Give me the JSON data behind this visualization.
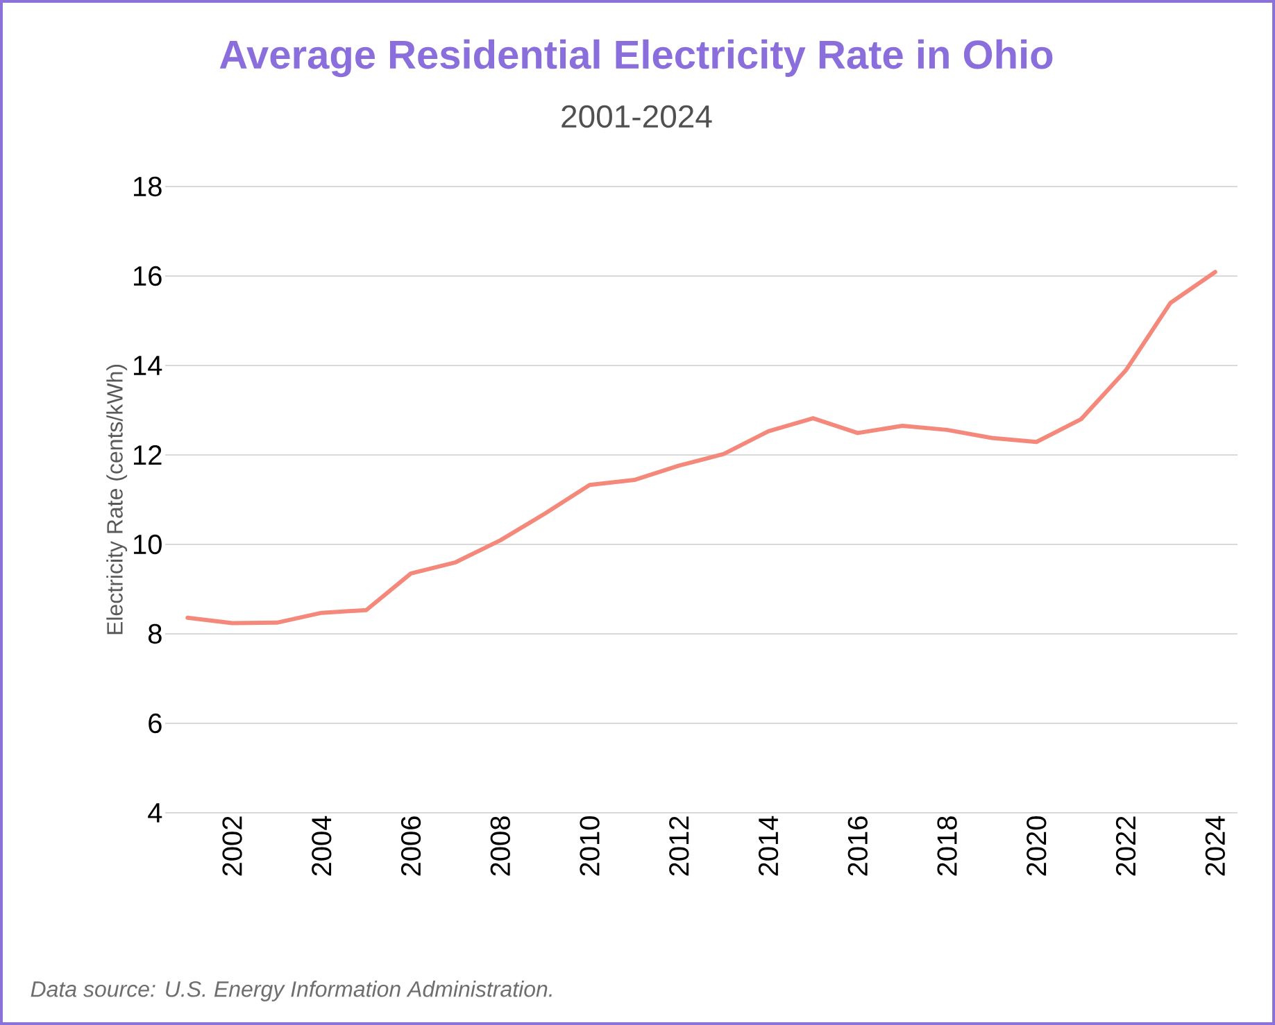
{
  "chart_data": {
    "type": "line",
    "title": "Average Residential Electricity Rate in Ohio",
    "subtitle": "2001-2024",
    "ylabel": "Electricity Rate (cents/kWh)",
    "x": [
      2001,
      2002,
      2003,
      2004,
      2005,
      2006,
      2007,
      2008,
      2009,
      2010,
      2011,
      2012,
      2013,
      2014,
      2015,
      2016,
      2017,
      2018,
      2019,
      2020,
      2021,
      2022,
      2023,
      2024
    ],
    "series": [
      {
        "color": "#f4897b",
        "values": [
          8.36,
          8.24,
          8.25,
          8.47,
          8.53,
          9.35,
          9.6,
          10.09,
          10.69,
          11.33,
          11.44,
          11.76,
          12.02,
          12.53,
          12.82,
          12.49,
          12.65,
          12.56,
          12.38,
          12.29,
          12.8,
          13.89,
          15.4,
          16.09
        ]
      }
    ],
    "xlim": [
      2000.5,
      2024.5
    ],
    "xticks": [
      2002,
      2004,
      2006,
      2008,
      2010,
      2012,
      2014,
      2016,
      2018,
      2020,
      2022,
      2024
    ],
    "ylim": [
      4,
      18
    ],
    "yticks": [
      4,
      6,
      8,
      10,
      12,
      14,
      16,
      18
    ],
    "grid": "y",
    "annotations": [
      "Data source: U.S. Energy Information Administration."
    ]
  }
}
